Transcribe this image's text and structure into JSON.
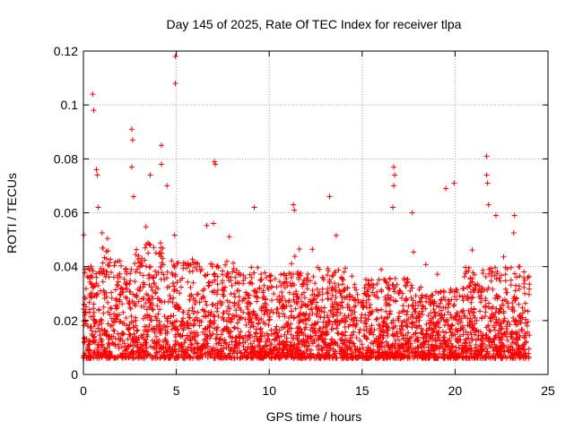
{
  "chart_data": {
    "type": "scatter",
    "title": "Day 145 of 2025, Rate Of TEC Index for receiver tlpa",
    "xlabel": "GPS time / hours",
    "ylabel": "ROTI / TECUs",
    "xlim": [
      0,
      25
    ],
    "ylim": [
      0,
      0.12
    ],
    "xticks": [
      0,
      5,
      10,
      15,
      20,
      25
    ],
    "xtick_labels": [
      "0",
      "5",
      "10",
      "15",
      "20",
      "25"
    ],
    "yticks": [
      0,
      0.02,
      0.04,
      0.06,
      0.08,
      0.1,
      0.12
    ],
    "ytick_labels": [
      "0",
      "0.02",
      "0.04",
      "0.06",
      "0.08",
      "0.1",
      "0.12"
    ],
    "grid": true,
    "marker": "+",
    "color": "#ff0000",
    "series": [
      {
        "name": "ROTI",
        "description": "Dense band of points mostly between 0.005 and 0.04 TECU/s across 0-24 h; outliers listed",
        "outliers": [
          {
            "x": 0.5,
            "y": 0.104
          },
          {
            "x": 0.55,
            "y": 0.098
          },
          {
            "x": 0.7,
            "y": 0.076
          },
          {
            "x": 0.75,
            "y": 0.074
          },
          {
            "x": 0.8,
            "y": 0.062
          },
          {
            "x": 2.6,
            "y": 0.091
          },
          {
            "x": 2.65,
            "y": 0.087
          },
          {
            "x": 2.6,
            "y": 0.077
          },
          {
            "x": 2.7,
            "y": 0.066
          },
          {
            "x": 3.6,
            "y": 0.074
          },
          {
            "x": 4.2,
            "y": 0.085
          },
          {
            "x": 4.2,
            "y": 0.078
          },
          {
            "x": 4.5,
            "y": 0.07
          },
          {
            "x": 4.95,
            "y": 0.118
          },
          {
            "x": 4.95,
            "y": 0.108
          },
          {
            "x": 7.05,
            "y": 0.079
          },
          {
            "x": 7.1,
            "y": 0.078
          },
          {
            "x": 7.0,
            "y": 0.056
          },
          {
            "x": 9.2,
            "y": 0.062
          },
          {
            "x": 11.3,
            "y": 0.063
          },
          {
            "x": 11.35,
            "y": 0.061
          },
          {
            "x": 13.25,
            "y": 0.066
          },
          {
            "x": 16.7,
            "y": 0.077
          },
          {
            "x": 16.75,
            "y": 0.074
          },
          {
            "x": 16.7,
            "y": 0.07
          },
          {
            "x": 16.65,
            "y": 0.062
          },
          {
            "x": 17.7,
            "y": 0.06
          },
          {
            "x": 19.5,
            "y": 0.069
          },
          {
            "x": 19.95,
            "y": 0.071
          },
          {
            "x": 21.7,
            "y": 0.081
          },
          {
            "x": 21.7,
            "y": 0.074
          },
          {
            "x": 21.75,
            "y": 0.071
          },
          {
            "x": 21.8,
            "y": 0.063
          },
          {
            "x": 22.2,
            "y": 0.059
          },
          {
            "x": 23.2,
            "y": 0.059
          }
        ]
      }
    ]
  }
}
